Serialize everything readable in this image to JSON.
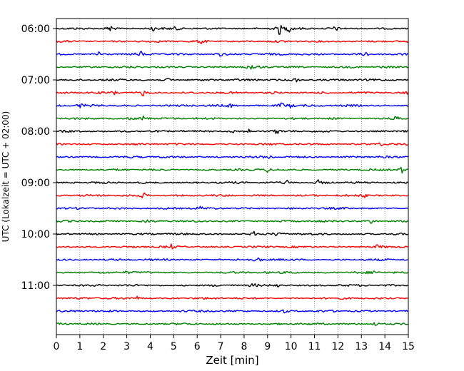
{
  "chart_data": {
    "type": "line",
    "subtype": "helicorder",
    "xlabel": "Zeit  [min]",
    "ylabel": "UTC (Lokalzeit = UTC + 02:00)",
    "xlim": [
      0,
      15
    ],
    "x_ticks": [
      0,
      1,
      2,
      3,
      4,
      5,
      6,
      7,
      8,
      9,
      10,
      11,
      12,
      13,
      14,
      15
    ],
    "x_tick_labels": [
      "0",
      "1",
      "2",
      "3",
      "4",
      "5",
      "6",
      "7",
      "8",
      "9",
      "10",
      "11",
      "12",
      "13",
      "14",
      "15"
    ],
    "y_tick_labels": [
      "06:00",
      "07:00",
      "08:00",
      "09:00",
      "10:00",
      "11:00"
    ],
    "y_tick_hours": [
      6,
      7,
      8,
      9,
      10,
      11
    ],
    "first_trace_time": "06:00",
    "trace_interval_min": 15,
    "trace_count": 24,
    "color_cycle": [
      "#000000",
      "#ff0000",
      "#0000ff",
      "#008000"
    ],
    "grid": {
      "x": true,
      "y": false,
      "style": "dotted"
    },
    "traces": [
      {
        "time": "06:00",
        "bursts": [
          [
            2.3,
            2.5
          ],
          [
            4.1,
            1.3
          ],
          [
            5.1,
            1.1
          ],
          [
            9.5,
            3.0
          ],
          [
            9.9,
            1.4
          ],
          [
            11.9,
            1.2
          ]
        ]
      },
      {
        "time": "06:15",
        "bursts": [
          [
            6.2,
            1.6
          ]
        ]
      },
      {
        "time": "06:30",
        "bursts": [
          [
            1.8,
            1.6
          ],
          [
            3.6,
            1.1
          ],
          [
            7.0,
            1.0
          ],
          [
            13.2,
            1.3
          ]
        ]
      },
      {
        "time": "06:45",
        "bursts": [
          [
            8.3,
            2.0
          ]
        ]
      },
      {
        "time": "07:00",
        "bursts": [
          [
            4.8,
            1.0
          ],
          [
            10.2,
            1.3
          ]
        ]
      },
      {
        "time": "07:15",
        "bursts": [
          [
            2.5,
            1.0
          ],
          [
            3.7,
            1.4
          ],
          [
            9.3,
            1.0
          ],
          [
            14.9,
            1.0
          ]
        ]
      },
      {
        "time": "07:30",
        "bursts": [
          [
            1.0,
            1.5
          ],
          [
            7.4,
            1.0
          ],
          [
            9.6,
            1.9
          ],
          [
            10.0,
            1.0
          ]
        ]
      },
      {
        "time": "07:45",
        "bursts": [
          [
            3.2,
            1.4
          ],
          [
            3.7,
            1.3
          ],
          [
            14.5,
            1.6
          ]
        ]
      },
      {
        "time": "08:00",
        "bursts": [
          [
            3.0,
            1.0
          ],
          [
            7.6,
            1.0
          ],
          [
            8.2,
            1.0
          ],
          [
            9.4,
            1.1
          ]
        ]
      },
      {
        "time": "08:15",
        "bursts": [
          [
            13.8,
            1.0
          ]
        ]
      },
      {
        "time": "08:30",
        "bursts": [
          [
            9.1,
            1.0
          ]
        ]
      },
      {
        "time": "08:45",
        "bursts": [
          [
            9.0,
            1.1
          ],
          [
            14.7,
            1.8
          ]
        ]
      },
      {
        "time": "09:00",
        "bursts": [
          [
            9.8,
            1.3
          ],
          [
            11.2,
            1.4
          ]
        ]
      },
      {
        "time": "09:15",
        "bursts": [
          [
            3.7,
            1.6
          ],
          [
            13.1,
            1.1
          ]
        ]
      },
      {
        "time": "09:30",
        "bursts": [
          [
            6.1,
            1.0
          ]
        ]
      },
      {
        "time": "09:45",
        "bursts": [
          [
            3.8,
            1.2
          ],
          [
            13.4,
            1.2
          ]
        ]
      },
      {
        "time": "10:00",
        "bursts": [
          [
            8.4,
            1.2
          ],
          [
            9.4,
            1.0
          ]
        ]
      },
      {
        "time": "10:15",
        "bursts": [
          [
            4.9,
            1.0
          ],
          [
            13.7,
            1.1
          ]
        ]
      },
      {
        "time": "10:30",
        "bursts": [
          [
            8.6,
            1.3
          ]
        ]
      },
      {
        "time": "10:45",
        "bursts": [
          [
            3.0,
            1.0
          ],
          [
            10.0,
            1.0
          ],
          [
            13.5,
            1.1
          ]
        ]
      },
      {
        "time": "11:00",
        "bursts": [
          [
            8.4,
            1.0
          ],
          [
            9.4,
            1.0
          ]
        ]
      },
      {
        "time": "11:15",
        "bursts": [
          [
            3.4,
            1.1
          ]
        ]
      },
      {
        "time": "11:30",
        "bursts": [
          [
            9.7,
            0.9
          ]
        ]
      },
      {
        "time": "11:45",
        "bursts": [
          [
            13.6,
            1.2
          ]
        ]
      }
    ]
  }
}
